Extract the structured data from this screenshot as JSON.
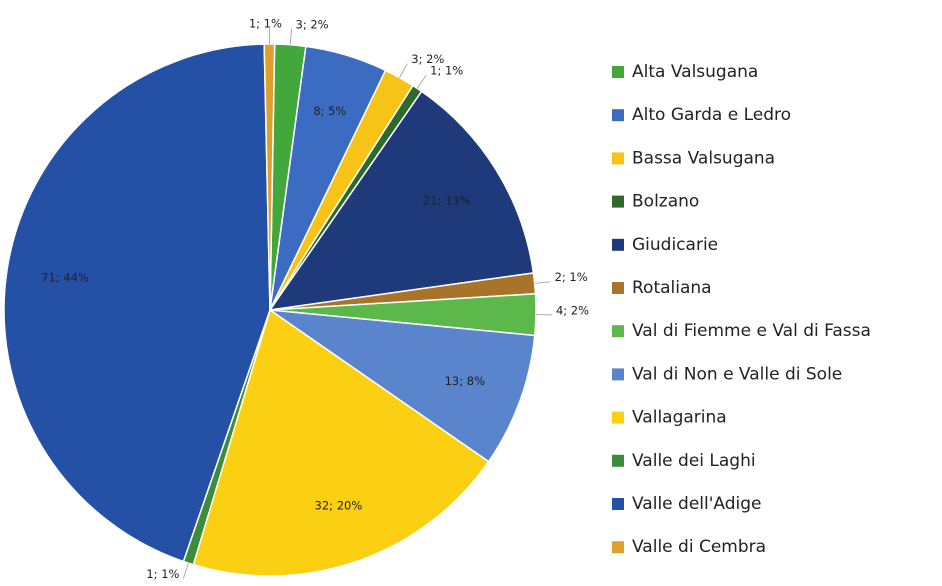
{
  "chart_data": {
    "type": "pie",
    "categories": [
      "Alta Valsugana",
      "Alto Garda e Ledro",
      "Bassa Valsugana",
      "Bolzano",
      "Giudicarie",
      "Rotaliana",
      "Val di Fiemme e Val di Fassa",
      "Val di Non e  Valle di Sole",
      "Vallagarina",
      "Valle dei Laghi",
      "Valle dell'Adige",
      "Valle di Cembra"
    ],
    "values": [
      3,
      8,
      3,
      1,
      21,
      2,
      4,
      13,
      32,
      1,
      71,
      1
    ],
    "value_labels": [
      "3; 2%",
      "8; 5%",
      "3; 2%",
      "1; 1%",
      "21; 13%",
      "2; 1%",
      "4; 2%",
      "13; 8%",
      "32; 20%",
      "1; 1%",
      "71; 44%",
      "1; 1%"
    ],
    "colors": [
      "#43a83b",
      "#3c6cc2",
      "#f7c317",
      "#2e6a2c",
      "#1e3a7a",
      "#a8742a",
      "#5cb84a",
      "#5a84cc",
      "#fbd012",
      "#3b8c3b",
      "#2451a6",
      "#df9f2c"
    ],
    "legend": "right"
  }
}
